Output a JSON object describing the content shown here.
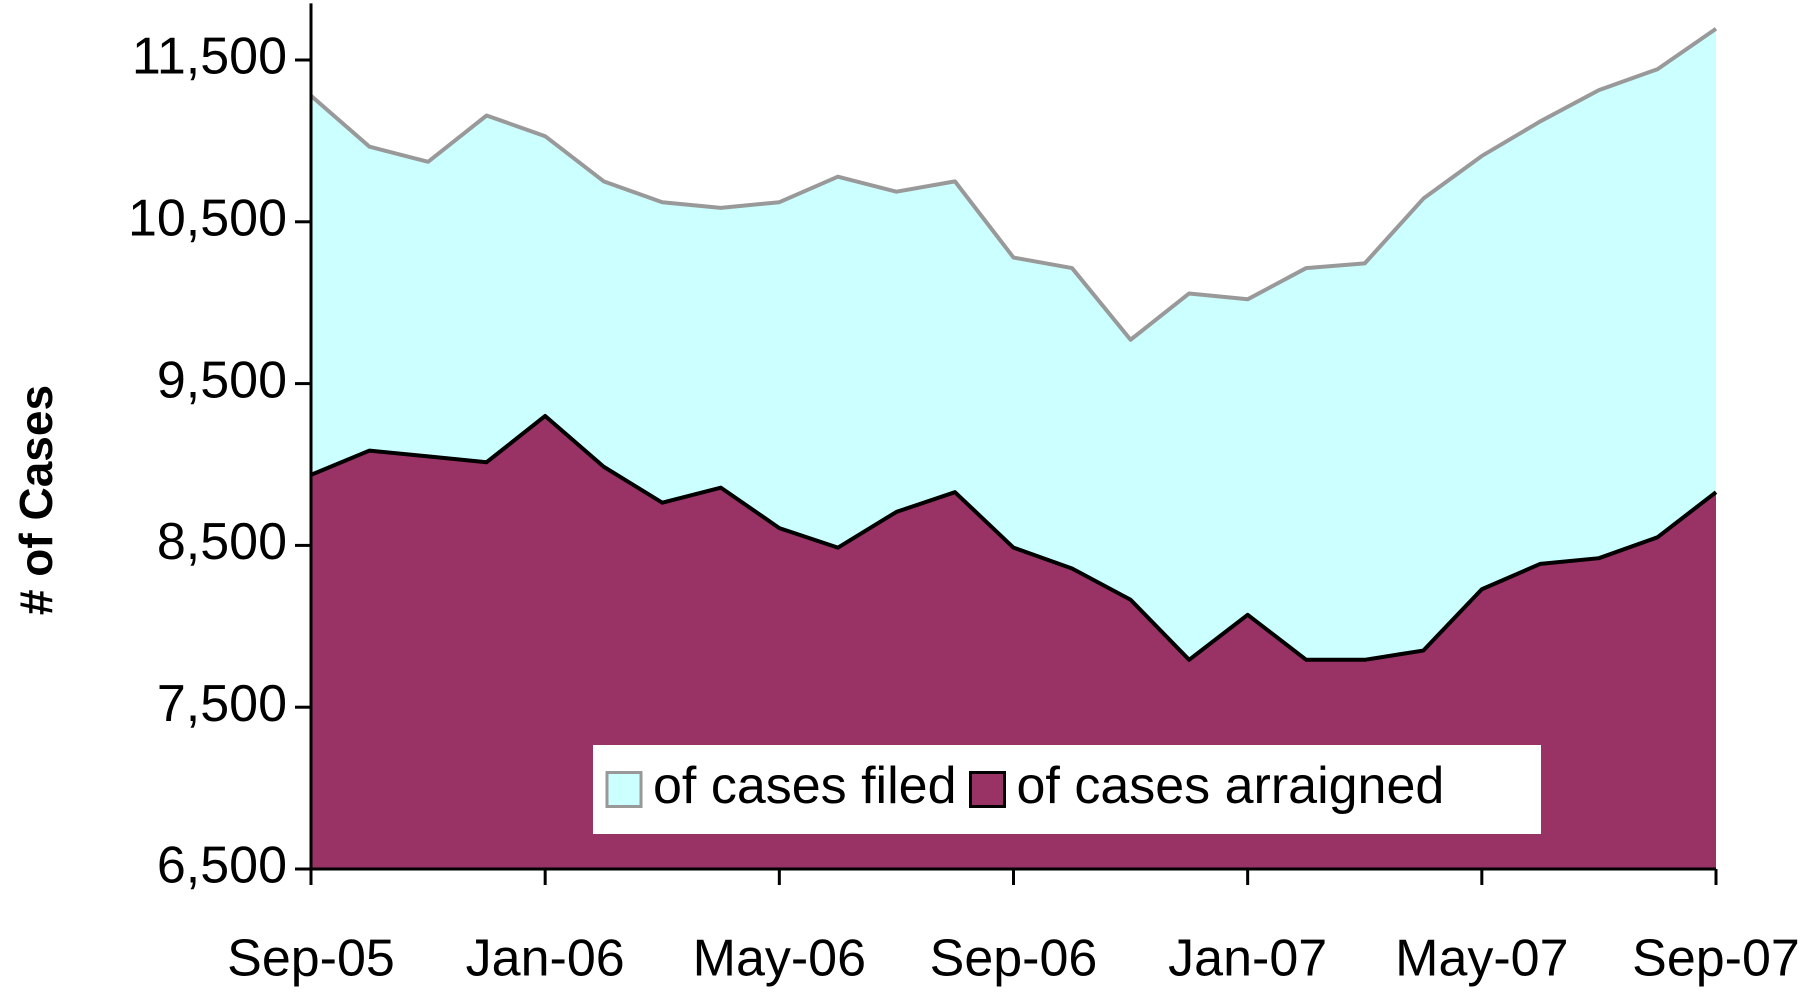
{
  "chart_data": {
    "type": "area",
    "y_label": "# of Cases",
    "categories": [
      "Sep-05",
      null,
      null,
      null,
      "Jan-06",
      null,
      null,
      null,
      "May-06",
      null,
      null,
      null,
      "Sep-06",
      null,
      null,
      null,
      "Jan-07",
      null,
      null,
      null,
      "May-07",
      null,
      null,
      null,
      "Sep-07"
    ],
    "series": [
      {
        "name": "of cases filed",
        "color": "#ccffff",
        "line_color": "#999999",
        "values": [
          11279,
          10964,
          10871,
          11157,
          11029,
          10750,
          10621,
          10586,
          10621,
          10779,
          10686,
          10750,
          10279,
          10214,
          9771,
          10057,
          10021,
          10214,
          10243,
          10643,
          10907,
          11121,
          11314,
          11443,
          11693
        ]
      },
      {
        "name": "of cases arraigned",
        "color": "#993366",
        "line_color": "#000000",
        "values": [
          8936,
          9086,
          9050,
          9014,
          9300,
          8986,
          8764,
          8857,
          8607,
          8486,
          8707,
          8829,
          8486,
          8357,
          8164,
          7793,
          8071,
          7793,
          7793,
          7850,
          8229,
          8386,
          8421,
          8550,
          8829
        ]
      }
    ],
    "ylim": [
      6500,
      11850
    ],
    "yticks": [
      {
        "value": 6500,
        "label": "6,500"
      },
      {
        "value": 7500,
        "label": "7,500"
      },
      {
        "value": 8500,
        "label": "8,500"
      },
      {
        "value": 9500,
        "label": "9,500"
      },
      {
        "value": 10500,
        "label": "10,500"
      },
      {
        "value": 11500,
        "label": "11,500"
      }
    ],
    "legend": "bottom"
  }
}
